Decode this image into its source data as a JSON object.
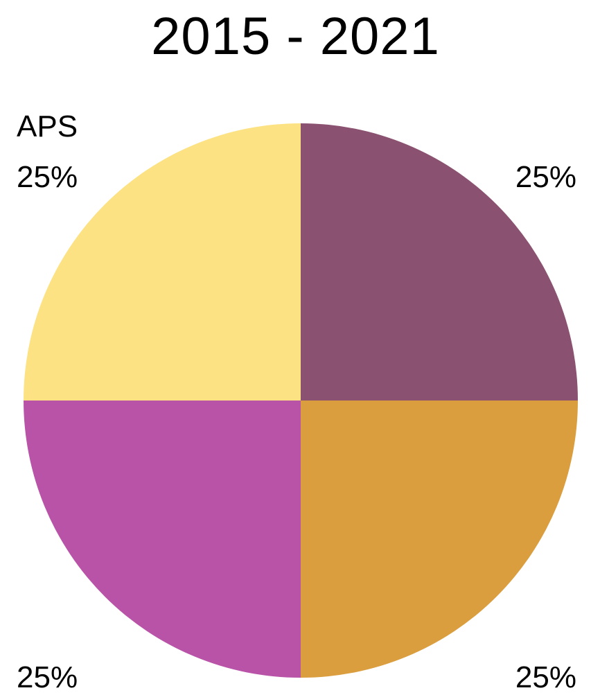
{
  "chart_data": {
    "type": "pie",
    "title": "2015 - 2021",
    "slices": [
      {
        "name": "",
        "value": 25,
        "label": "25%",
        "color": "#8a5270"
      },
      {
        "name": "",
        "value": 25,
        "label": "25%",
        "color": "#da9e3f"
      },
      {
        "name": "",
        "value": 25,
        "label": "25%",
        "color": "#b853a8"
      },
      {
        "name": "APS",
        "value": 25,
        "label": "25%",
        "color": "#fce283"
      }
    ],
    "start_angle": "12 o'clock",
    "direction": "clockwise",
    "legend": "none"
  }
}
